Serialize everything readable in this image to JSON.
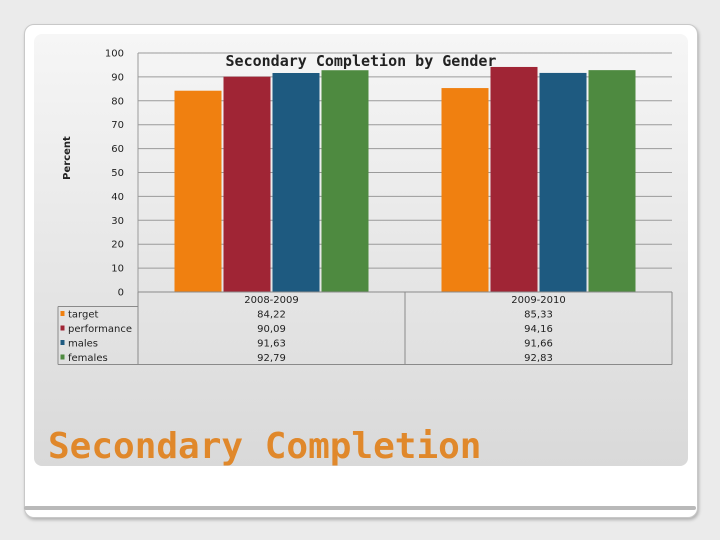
{
  "slide_title": "Secondary Completion",
  "chart_data": {
    "type": "bar",
    "title": "Secondary Completion by Gender",
    "ylabel": "Percent",
    "xlabel": "",
    "ylim": [
      0,
      100
    ],
    "yticks": [
      "0",
      "10",
      "20",
      "30",
      "40",
      "50",
      "60",
      "70",
      "80",
      "90",
      "100"
    ],
    "grid": true,
    "legend": "data-table-left",
    "categories": [
      "2008-2009",
      "2009-2010"
    ],
    "series": [
      {
        "name": "target",
        "values": [
          84.22,
          85.33
        ],
        "labels": [
          "84,22",
          "85,33"
        ],
        "color": "#f08010"
      },
      {
        "name": "performance",
        "values": [
          90.09,
          94.16
        ],
        "labels": [
          "90,09",
          "94,16"
        ],
        "color": "#a02535"
      },
      {
        "name": "males",
        "values": [
          91.63,
          91.66
        ],
        "labels": [
          "91,63",
          "91,66"
        ],
        "color": "#1e5a80"
      },
      {
        "name": "females",
        "values": [
          92.79,
          92.83
        ],
        "labels": [
          "92,79",
          "92,83"
        ],
        "color": "#4e8a40"
      }
    ]
  }
}
